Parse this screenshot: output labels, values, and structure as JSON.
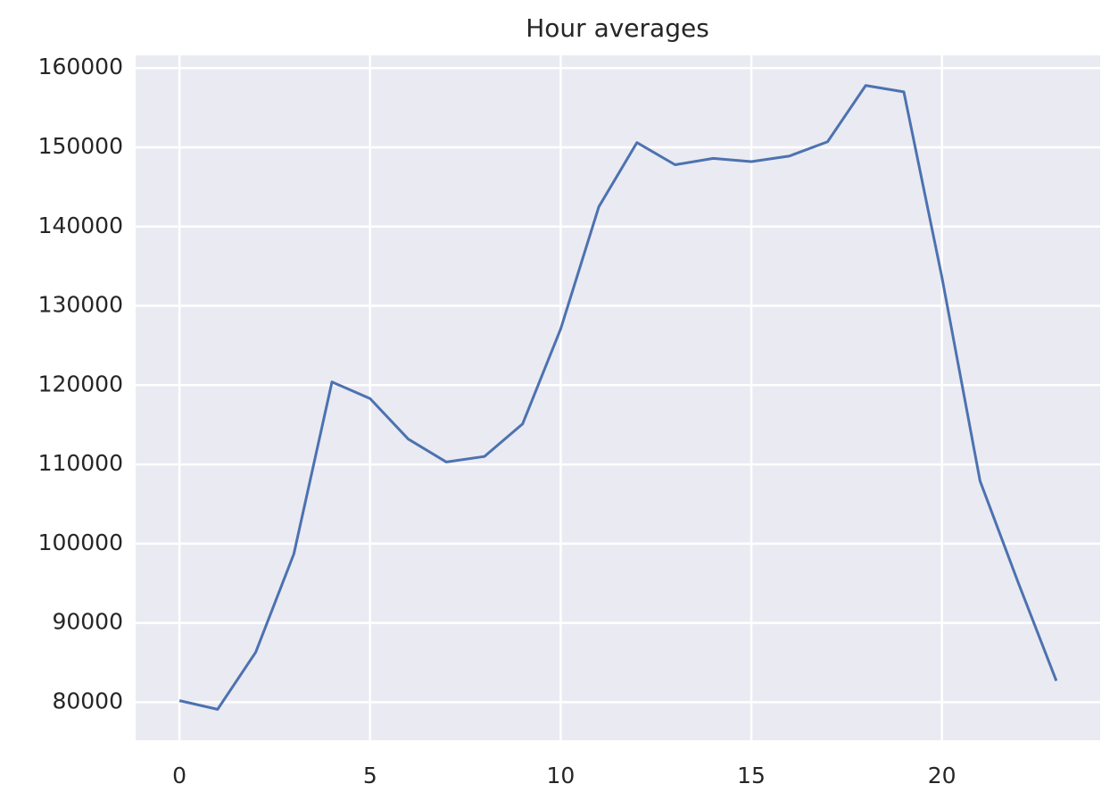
{
  "chart_data": {
    "type": "line",
    "title": "Hour averages",
    "x": [
      0,
      1,
      2,
      3,
      4,
      5,
      6,
      7,
      8,
      9,
      10,
      11,
      12,
      13,
      14,
      15,
      16,
      17,
      18,
      19,
      20,
      21,
      22,
      23
    ],
    "series": [
      {
        "color": "#4c72b0",
        "values": [
          80200,
          79100,
          86300,
          98700,
          120400,
          118300,
          113200,
          110300,
          111000,
          115100,
          127100,
          142500,
          150600,
          147800,
          148600,
          148200,
          148900,
          150700,
          157800,
          157000,
          133600,
          107900,
          95100,
          82700
        ]
      }
    ],
    "xlim": [
      -1.15,
      24.15
    ],
    "xticks": [
      0,
      5,
      10,
      15,
      20
    ],
    "ylim": [
      75200,
      161600
    ],
    "yticks": [
      80000,
      90000,
      100000,
      110000,
      120000,
      130000,
      140000,
      150000,
      160000
    ],
    "grid": true
  }
}
